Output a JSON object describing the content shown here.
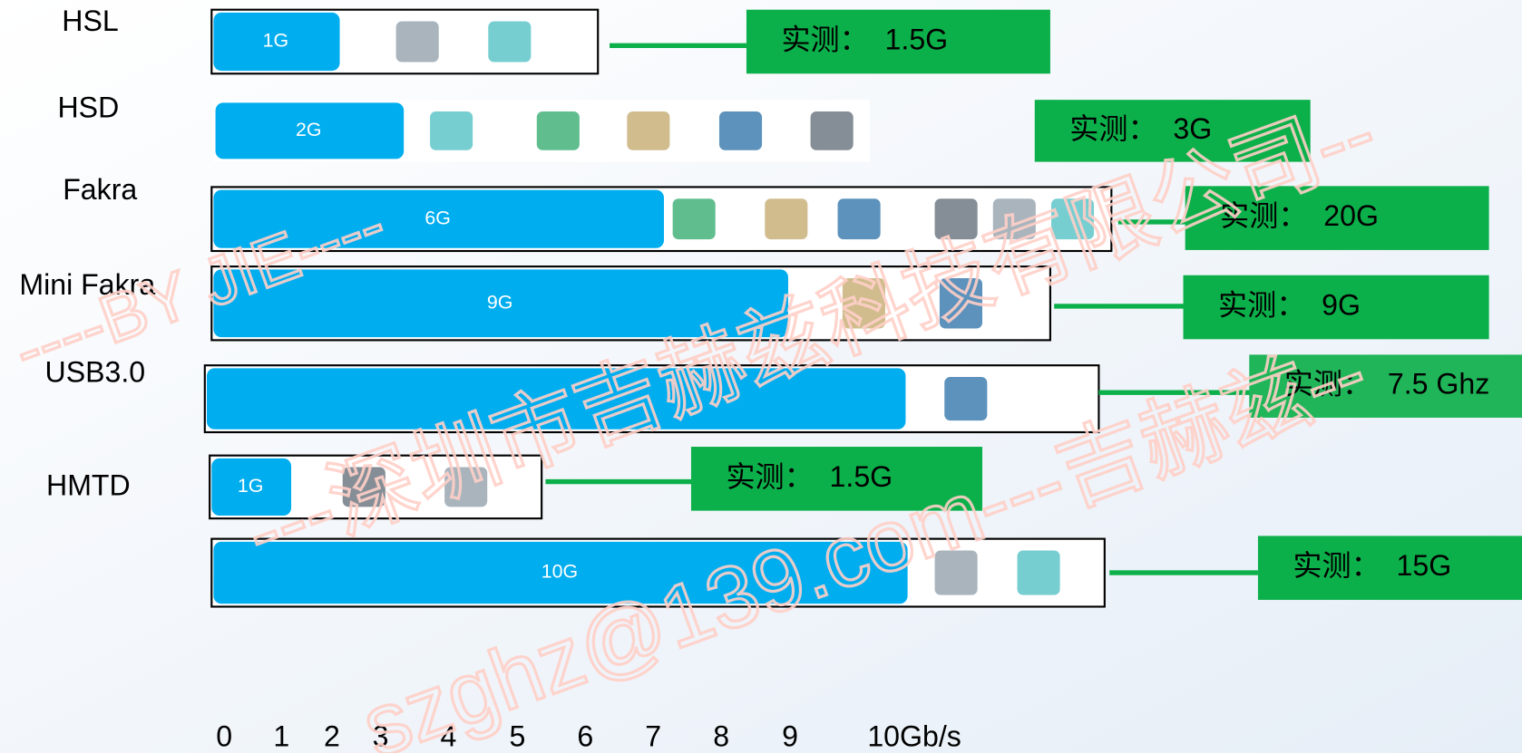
{
  "rows": [
    {
      "name": "HSL",
      "bar_label": "1G",
      "measured": "实测：  1.5G"
    },
    {
      "name": "HSD",
      "bar_label": "2G",
      "measured": "实测：  3G"
    },
    {
      "name": "Fakra",
      "bar_label": "6G",
      "measured": "实测：  20G"
    },
    {
      "name": "Mini Fakra",
      "bar_label": "9G",
      "measured": "实测：  9G"
    },
    {
      "name": "USB3.0",
      "measured": "实测：  7.5 Ghz"
    },
    {
      "name": "HMTD",
      "bar_label": "1G",
      "measured": "实测：  1.5G"
    },
    {
      "bar_label": "10G",
      "measured": "实测：  15G"
    }
  ],
  "axis_labels": [
    "0",
    "1",
    "2",
    "3",
    "4",
    "5",
    "6",
    "7",
    "8",
    "9",
    "10Gb/s"
  ],
  "watermarks": [
    "----BY JIE----",
    "---深圳市吉赫兹科技有限公司--",
    "szghz@139.com---吉赫兹--"
  ]
}
